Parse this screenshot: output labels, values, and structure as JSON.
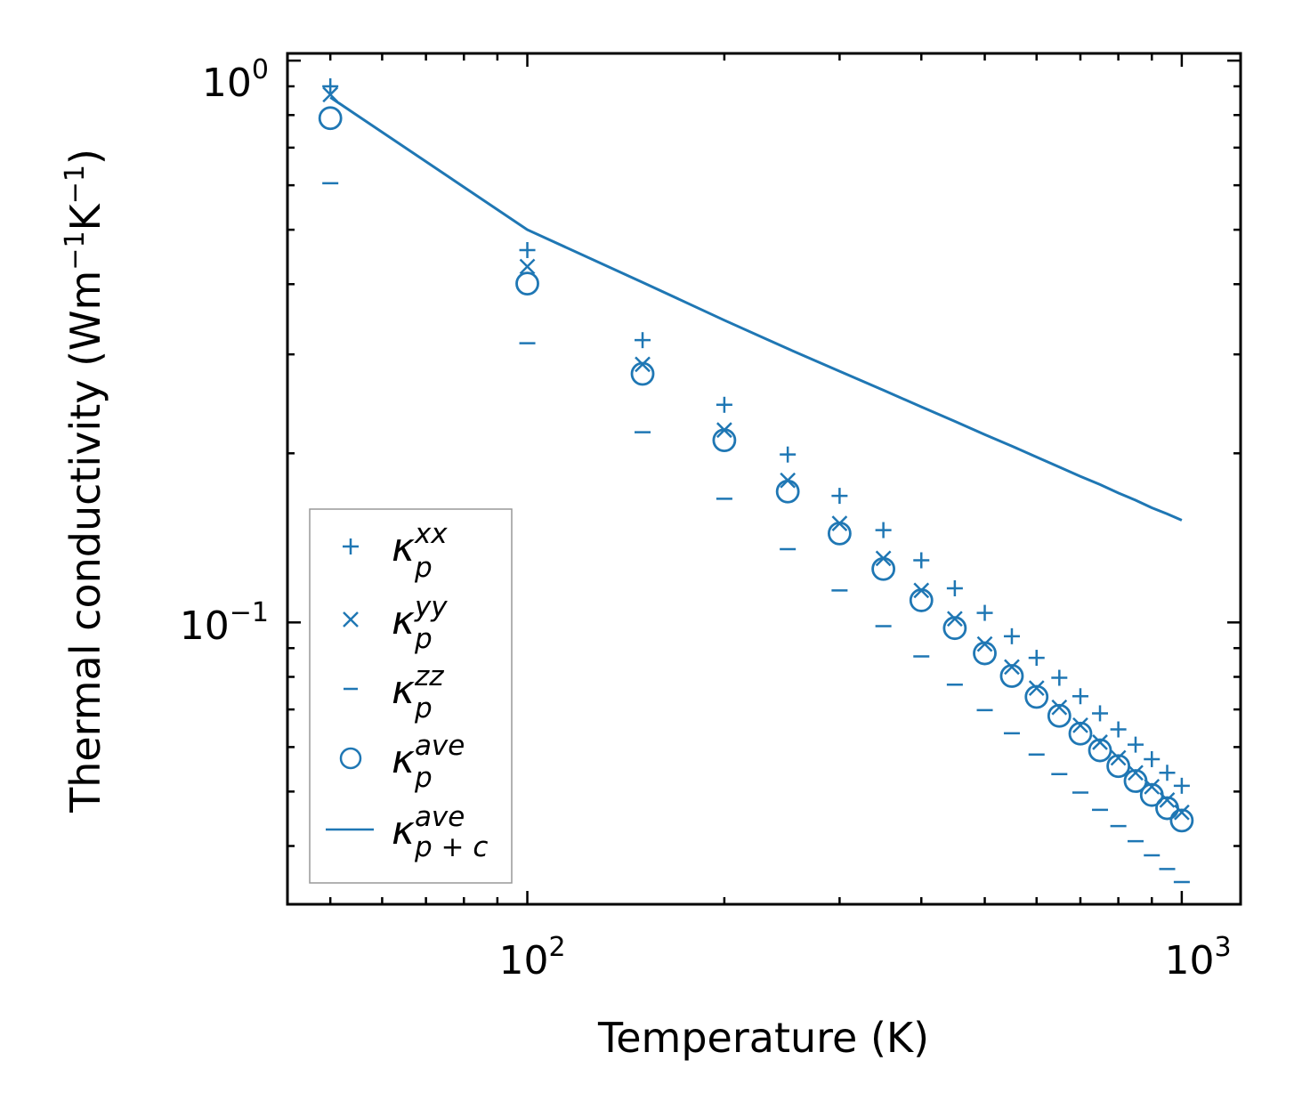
{
  "chart_data": {
    "type": "scatter",
    "xscale": "log",
    "yscale": "log",
    "xlim": [
      43,
      1230
    ],
    "ylim": [
      0.0315,
      1.03
    ],
    "xlabel": "Temperature (K)",
    "ylabel": "Thermal conductivity (Wm−1K−1)",
    "ylabel_parts": {
      "pre": "Thermal conductivity (Wm",
      "sup1": "−1",
      "mid": "K",
      "sup2": "−1",
      "post": ")"
    },
    "x_ticks": [
      {
        "value": 100,
        "base": "10",
        "exp": "2"
      },
      {
        "value": 1000,
        "base": "10",
        "exp": "3"
      }
    ],
    "y_ticks": [
      {
        "value": 0.1,
        "base": "10",
        "exp": "−1"
      },
      {
        "value": 1,
        "base": "10",
        "exp": "0"
      }
    ],
    "color": "#1f77b4",
    "x": [
      50,
      100,
      150,
      200,
      250,
      300,
      350,
      400,
      450,
      500,
      550,
      600,
      650,
      700,
      750,
      800,
      850,
      900,
      950,
      1000
    ],
    "series": [
      {
        "name": "κp^xx",
        "marker": "plus",
        "values": [
          0.9,
          0.46,
          0.318,
          0.244,
          0.199,
          0.168,
          0.146,
          0.129,
          0.115,
          0.104,
          0.0945,
          0.0865,
          0.0797,
          0.0739,
          0.0689,
          0.0645,
          0.0606,
          0.0571,
          0.054,
          0.0512
        ]
      },
      {
        "name": "κp^yy",
        "marker": "x",
        "values": [
          0.87,
          0.43,
          0.288,
          0.22,
          0.179,
          0.15,
          0.13,
          0.114,
          0.1015,
          0.0915,
          0.0833,
          0.0764,
          0.0706,
          0.0656,
          0.0612,
          0.0574,
          0.054,
          0.051,
          0.0483,
          0.0459
        ]
      },
      {
        "name": "κp^zz",
        "marker": "dash",
        "values": [
          0.605,
          0.314,
          0.218,
          0.166,
          0.135,
          0.114,
          0.0985,
          0.087,
          0.0775,
          0.0698,
          0.0635,
          0.0582,
          0.0537,
          0.0498,
          0.0464,
          0.0434,
          0.0408,
          0.0385,
          0.0364,
          0.0345
        ]
      },
      {
        "name": "κp^ave",
        "marker": "circle",
        "values": [
          0.79,
          0.401,
          0.277,
          0.211,
          0.171,
          0.144,
          0.1245,
          0.1095,
          0.0977,
          0.0881,
          0.0803,
          0.0737,
          0.0682,
          0.0634,
          0.0592,
          0.0555,
          0.0522,
          0.0493,
          0.0467,
          0.0444
        ]
      },
      {
        "name": "κp+c^ave",
        "marker": "line",
        "values": [
          0.86,
          0.5,
          0.403,
          0.345,
          0.307,
          0.28,
          0.259,
          0.242,
          0.228,
          0.216,
          0.206,
          0.197,
          0.189,
          0.182,
          0.176,
          0.17,
          0.165,
          0.16,
          0.156,
          0.152
        ]
      }
    ],
    "legend": {
      "placement": "lower-left",
      "entries": [
        {
          "base": "κ",
          "sub": "p",
          "sup": "xx"
        },
        {
          "base": "κ",
          "sub": "p",
          "sup": "yy"
        },
        {
          "base": "κ",
          "sub": "p",
          "sup": "zz"
        },
        {
          "base": "κ",
          "sub": "p",
          "sup": "ave"
        },
        {
          "base": "κ",
          "sub": "p + c",
          "sup": "ave"
        }
      ]
    }
  }
}
